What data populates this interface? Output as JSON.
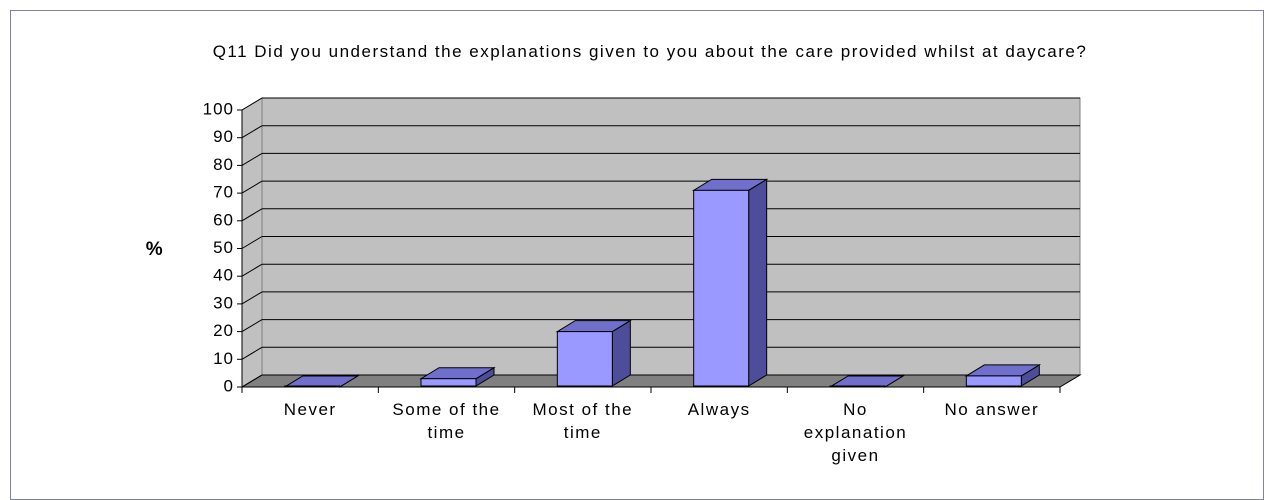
{
  "chart_data": {
    "type": "bar3d",
    "title": "Q11 Did you understand the explanations given to you about the care provided whilst at daycare?",
    "y_label": "%",
    "categories": [
      "Never",
      "Some of the time",
      "Most of the time",
      "Always",
      "No explanation given",
      "No answer"
    ],
    "values": [
      0,
      3,
      20,
      71,
      0,
      4
    ],
    "color": "#9999ff",
    "ylim": [
      0,
      100
    ],
    "yticks": [
      0,
      10,
      20,
      30,
      40,
      50,
      60,
      70,
      80,
      90,
      100
    ],
    "grid": true
  }
}
